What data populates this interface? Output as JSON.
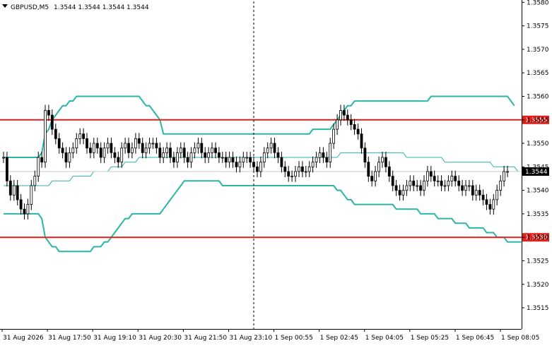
{
  "header": {
    "symbol_timeframe": "GBPUSD,M5",
    "ohlc": "1.3544 1.3544 1.3544 1.3544"
  },
  "colors": {
    "background": "#ffffff",
    "candle": "#000000",
    "bands": "#2bb5a4",
    "mid_band": "#2bb5a4",
    "levels": "#e0201b",
    "price_marker": "#000000"
  },
  "chart_data": {
    "type": "candlestick",
    "title": "GBPUSD,M5",
    "y_axis": {
      "position": "right",
      "ylim": [
        1.35105,
        1.35805
      ],
      "ticks": [
        "1.3580",
        "1.3575",
        "1.3570",
        "1.3565",
        "1.3560",
        "1.3555",
        "1.3550",
        "1.3545",
        "1.3540",
        "1.3535",
        "1.3530",
        "1.3525",
        "1.3520",
        "1.3515"
      ]
    },
    "x_axis": {
      "ticks": [
        "31 Aug 2026",
        "31 Aug 17:50",
        "31 Aug 19:10",
        "31 Aug 20:30",
        "31 Aug 21:50",
        "31 Aug 23:10",
        "1 Sep 00:55",
        "1 Sep 02:45",
        "1 Sep 04:05",
        "1 Sep 05:25",
        "1 Sep 06:45",
        "1 Sep 08:05"
      ]
    },
    "grid": false,
    "levels": [
      {
        "value": 1.3555,
        "label": "1.3555"
      },
      {
        "value": 1.353,
        "label": "1.3530"
      }
    ],
    "current_price": {
      "value": 1.3544,
      "label": "1.3544"
    },
    "period_separator": "1 Sep 00:00",
    "candles_close": [
      1.3547,
      1.3542,
      1.3539,
      1.3541,
      1.3538,
      1.3536,
      1.3535,
      1.3537,
      1.3541,
      1.3543,
      1.3547,
      1.3546,
      1.3557,
      1.3556,
      1.3553,
      1.3551,
      1.3549,
      1.3548,
      1.3546,
      1.3548,
      1.3549,
      1.3551,
      1.3552,
      1.3551,
      1.3549,
      1.3548,
      1.355,
      1.3549,
      1.3547,
      1.3549,
      1.355,
      1.3548,
      1.3547,
      1.3546,
      1.3549,
      1.355,
      1.3548,
      1.3549,
      1.3551,
      1.355,
      1.3548,
      1.3549,
      1.355,
      1.355,
      1.3549,
      1.3547,
      1.3548,
      1.3549,
      1.3547,
      1.3546,
      1.3548,
      1.3549,
      1.3547,
      1.3546,
      1.3548,
      1.3549,
      1.355,
      1.3548,
      1.3547,
      1.3548,
      1.3549,
      1.3548,
      1.3547,
      1.3547,
      1.3546,
      1.3547,
      1.3546,
      1.3545,
      1.3546,
      1.3547,
      1.3547,
      1.3546,
      1.3545,
      1.3544,
      1.3546,
      1.3548,
      1.3549,
      1.355,
      1.3548,
      1.3547,
      1.3545,
      1.3544,
      1.3543,
      1.3543,
      1.3544,
      1.3545,
      1.3544,
      1.3544,
      1.3545,
      1.3546,
      1.3547,
      1.3548,
      1.3547,
      1.3546,
      1.355,
      1.3553,
      1.3555,
      1.3557,
      1.3556,
      1.3555,
      1.3554,
      1.3553,
      1.3552,
      1.3549,
      1.3546,
      1.3543,
      1.3542,
      1.3544,
      1.3546,
      1.3547,
      1.3545,
      1.3543,
      1.3541,
      1.354,
      1.3539,
      1.354,
      1.3541,
      1.3542,
      1.3541,
      1.3541,
      1.354,
      1.3542,
      1.3544,
      1.3543,
      1.3542,
      1.3542,
      1.3541,
      1.3541,
      1.3542,
      1.3543,
      1.3542,
      1.3541,
      1.354,
      1.3541,
      1.3541,
      1.3539,
      1.354,
      1.3539,
      1.3538,
      1.3537,
      1.3536,
      1.3538,
      1.354,
      1.3542,
      1.3544,
      1.3544
    ],
    "bb_upper": [
      1.3547,
      1.3547,
      1.3547,
      1.3547,
      1.3547,
      1.3547,
      1.3547,
      1.3547,
      1.3547,
      1.3547,
      1.3547,
      1.3548,
      1.3552,
      1.3553,
      1.3555,
      1.3556,
      1.3557,
      1.3558,
      1.3558,
      1.3559,
      1.3559,
      1.356,
      1.356,
      1.356,
      1.356,
      1.356,
      1.356,
      1.356,
      1.356,
      1.356,
      1.356,
      1.356,
      1.356,
      1.356,
      1.356,
      1.356,
      1.356,
      1.356,
      1.356,
      1.356,
      1.3559,
      1.3558,
      1.3558,
      1.3557,
      1.3556,
      1.3555,
      1.3552,
      1.3552,
      1.3552,
      1.3552,
      1.3552,
      1.3552,
      1.3552,
      1.3552,
      1.3552,
      1.3552,
      1.3552,
      1.3552,
      1.3552,
      1.3552,
      1.3552,
      1.3552,
      1.3552,
      1.3552,
      1.3552,
      1.3552,
      1.3552,
      1.3552,
      1.3552,
      1.3552,
      1.3552,
      1.3552,
      1.3552,
      1.3552,
      1.3552,
      1.3552,
      1.3552,
      1.3552,
      1.3552,
      1.3552,
      1.3552,
      1.3552,
      1.3552,
      1.3552,
      1.3552,
      1.3552,
      1.3552,
      1.3552,
      1.3552,
      1.3553,
      1.3553,
      1.3553,
      1.3553,
      1.3553,
      1.3553,
      1.3554,
      1.3555,
      1.3556,
      1.3557,
      1.3558,
      1.3558,
      1.3559,
      1.3559,
      1.3559,
      1.3559,
      1.3559,
      1.3559,
      1.3559,
      1.3559,
      1.3559,
      1.3559,
      1.3559,
      1.3559,
      1.3559,
      1.3559,
      1.3559,
      1.3559,
      1.3559,
      1.3559,
      1.3559,
      1.3559,
      1.3559,
      1.3559,
      1.356,
      1.356,
      1.356,
      1.356,
      1.356,
      1.356,
      1.356,
      1.356,
      1.356,
      1.356,
      1.356,
      1.356,
      1.356,
      1.356,
      1.356,
      1.356,
      1.356,
      1.356,
      1.356,
      1.356,
      1.356,
      1.356,
      1.356,
      1.3559,
      1.3558
    ],
    "bb_middle": [
      1.3541,
      1.3541,
      1.3541,
      1.3541,
      1.3541,
      1.3541,
      1.3541,
      1.3541,
      1.3541,
      1.3541,
      1.3541,
      1.3541,
      1.3541,
      1.3541,
      1.3542,
      1.3542,
      1.3542,
      1.3542,
      1.3542,
      1.3542,
      1.3543,
      1.3543,
      1.3543,
      1.3543,
      1.3543,
      1.3543,
      1.3544,
      1.3544,
      1.3544,
      1.3544,
      1.3544,
      1.3545,
      1.3545,
      1.3545,
      1.3545,
      1.3546,
      1.3546,
      1.3546,
      1.3546,
      1.3547,
      1.3547,
      1.3547,
      1.3547,
      1.3547,
      1.3547,
      1.3547,
      1.3547,
      1.3547,
      1.3547,
      1.3547,
      1.3547,
      1.3547,
      1.3547,
      1.3547,
      1.3547,
      1.3547,
      1.3547,
      1.3547,
      1.3547,
      1.3547,
      1.3547,
      1.3547,
      1.3547,
      1.3547,
      1.3547,
      1.3547,
      1.3547,
      1.3547,
      1.3547,
      1.3547,
      1.3547,
      1.3547,
      1.3547,
      1.3547,
      1.3547,
      1.3547,
      1.3547,
      1.3547,
      1.3547,
      1.3547,
      1.3547,
      1.3547,
      1.3547,
      1.3547,
      1.3547,
      1.3547,
      1.3547,
      1.3547,
      1.3547,
      1.3547,
      1.3547,
      1.3547,
      1.3547,
      1.3547,
      1.3547,
      1.3547,
      1.3547,
      1.3548,
      1.3548,
      1.3548,
      1.3548,
      1.3548,
      1.3548,
      1.3548,
      1.3548,
      1.3548,
      1.3548,
      1.3548,
      1.3548,
      1.3548,
      1.3548,
      1.3548,
      1.3548,
      1.3548,
      1.3548,
      1.3548,
      1.3547,
      1.3547,
      1.3547,
      1.3547,
      1.3547,
      1.3547,
      1.3547,
      1.3547,
      1.3547,
      1.3547,
      1.3547,
      1.3546,
      1.3546,
      1.3546,
      1.3546,
      1.3546,
      1.3546,
      1.3546,
      1.3546,
      1.3546,
      1.3546,
      1.3546,
      1.3546,
      1.3546,
      1.3546,
      1.3545,
      1.3545,
      1.3545,
      1.3545,
      1.3545,
      1.3545,
      1.3545,
      1.3544,
      1.3544
    ],
    "bb_lower": [
      1.3535,
      1.3535,
      1.3535,
      1.3535,
      1.3535,
      1.3535,
      1.3535,
      1.3535,
      1.3535,
      1.3535,
      1.3535,
      1.3534,
      1.353,
      1.3529,
      1.3528,
      1.3528,
      1.3527,
      1.3527,
      1.3527,
      1.3527,
      1.3527,
      1.3527,
      1.3527,
      1.3527,
      1.3527,
      1.3527,
      1.3528,
      1.3528,
      1.3528,
      1.3529,
      1.3529,
      1.353,
      1.3531,
      1.3532,
      1.3533,
      1.3534,
      1.3534,
      1.3535,
      1.3535,
      1.3535,
      1.3535,
      1.3535,
      1.3535,
      1.3535,
      1.3535,
      1.3535,
      1.3536,
      1.3537,
      1.3538,
      1.3539,
      1.354,
      1.3541,
      1.3542,
      1.3542,
      1.3542,
      1.3542,
      1.3542,
      1.3542,
      1.3542,
      1.3542,
      1.3542,
      1.3542,
      1.3542,
      1.3541,
      1.3541,
      1.3541,
      1.3541,
      1.3541,
      1.3541,
      1.3541,
      1.3541,
      1.3541,
      1.3541,
      1.3541,
      1.3541,
      1.3541,
      1.3541,
      1.3541,
      1.3541,
      1.3541,
      1.3541,
      1.3541,
      1.3541,
      1.3541,
      1.3541,
      1.3541,
      1.3541,
      1.3541,
      1.3541,
      1.3541,
      1.3541,
      1.3541,
      1.3541,
      1.3541,
      1.3541,
      1.3541,
      1.354,
      1.354,
      1.3539,
      1.3538,
      1.3538,
      1.3537,
      1.3537,
      1.3537,
      1.3537,
      1.3537,
      1.3537,
      1.3537,
      1.3537,
      1.3537,
      1.3537,
      1.3537,
      1.3537,
      1.3536,
      1.3536,
      1.3536,
      1.3536,
      1.3536,
      1.3536,
      1.3536,
      1.3535,
      1.3535,
      1.3535,
      1.3535,
      1.3535,
      1.3534,
      1.3534,
      1.3534,
      1.3534,
      1.3534,
      1.3533,
      1.3533,
      1.3533,
      1.3533,
      1.3532,
      1.3532,
      1.3532,
      1.3532,
      1.3532,
      1.3531,
      1.3531,
      1.3531,
      1.353,
      1.353,
      1.353,
      1.3529,
      1.3529,
      1.3529,
      1.3529,
      1.3529
    ]
  }
}
